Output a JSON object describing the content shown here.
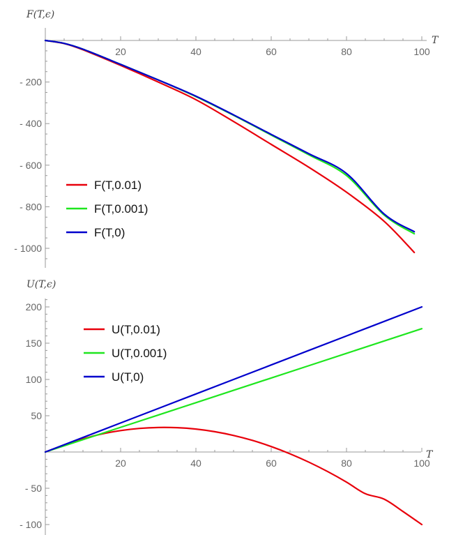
{
  "chart_data": [
    {
      "type": "line",
      "title": "",
      "ylabel": "F(T,ϵ)",
      "xlabel": "T",
      "xlim": [
        0,
        100
      ],
      "ylim": [
        -1050,
        0
      ],
      "x_ticks": [
        20,
        40,
        60,
        80,
        100
      ],
      "y_ticks": [
        -200,
        -400,
        -600,
        -800,
        -1000
      ],
      "x_tick_labels": [
        "20",
        "40",
        "60",
        "80",
        "100"
      ],
      "y_tick_labels": [
        "- 200",
        "- 400",
        "- 600",
        "- 800",
        "- 1000"
      ],
      "legend_position": "lower-left",
      "grid": false,
      "series": [
        {
          "name": "F(T,0.01)",
          "color": "#e8000b",
          "x": [
            0,
            5,
            10,
            20,
            30,
            40,
            50,
            60,
            70,
            80,
            90,
            98
          ],
          "values": [
            0,
            -15,
            -45,
            -120,
            -200,
            -285,
            -390,
            -500,
            -610,
            -730,
            -870,
            -1020
          ]
        },
        {
          "name": "F(T,0.001)",
          "color": "#1ee61e",
          "x": [
            0,
            5,
            10,
            20,
            30,
            40,
            50,
            60,
            70,
            80,
            90,
            98
          ],
          "values": [
            0,
            -14,
            -42,
            -115,
            -190,
            -270,
            -360,
            -455,
            -550,
            -650,
            -840,
            -930
          ]
        },
        {
          "name": "F(T,0)",
          "color": "#0000cc",
          "x": [
            0,
            5,
            10,
            20,
            30,
            40,
            50,
            60,
            70,
            80,
            90,
            98
          ],
          "values": [
            0,
            -14,
            -42,
            -115,
            -190,
            -268,
            -358,
            -452,
            -545,
            -640,
            -835,
            -920
          ]
        }
      ]
    },
    {
      "type": "line",
      "title": "",
      "ylabel": "U(T,ϵ)",
      "xlabel": "T",
      "xlim": [
        0,
        100
      ],
      "ylim": [
        -110,
        220
      ],
      "x_ticks": [
        20,
        40,
        60,
        80,
        100
      ],
      "y_ticks": [
        200,
        150,
        100,
        50,
        -50,
        -100
      ],
      "x_tick_labels": [
        "20",
        "40",
        "60",
        "80",
        "100"
      ],
      "y_tick_labels": [
        "200",
        "150",
        "100",
        "50",
        "- 50",
        "- 100"
      ],
      "legend_position": "top-left",
      "grid": false,
      "series": [
        {
          "name": "U(T,0.01)",
          "color": "#e8000b",
          "x": [
            0,
            5,
            10,
            15,
            20,
            25,
            30,
            35,
            40,
            45,
            50,
            55,
            60,
            65,
            70,
            75,
            80,
            85,
            90,
            95,
            100
          ],
          "values": [
            0,
            9.5,
            18,
            24.8,
            29.5,
            32.5,
            33.8,
            33.5,
            31.6,
            28,
            22.8,
            16,
            7.5,
            -2.5,
            -14,
            -27,
            -41.5,
            -57.5,
            -65,
            -82,
            -100
          ]
        },
        {
          "name": "U(T,0.001)",
          "color": "#1ee61e",
          "x": [
            0,
            20,
            40,
            60,
            80,
            100
          ],
          "values": [
            0,
            34,
            68,
            102,
            136,
            170
          ]
        },
        {
          "name": "U(T,0)",
          "color": "#0000cc",
          "x": [
            0,
            20,
            40,
            60,
            80,
            100
          ],
          "values": [
            0,
            40,
            80,
            120,
            160,
            200
          ]
        }
      ]
    }
  ]
}
